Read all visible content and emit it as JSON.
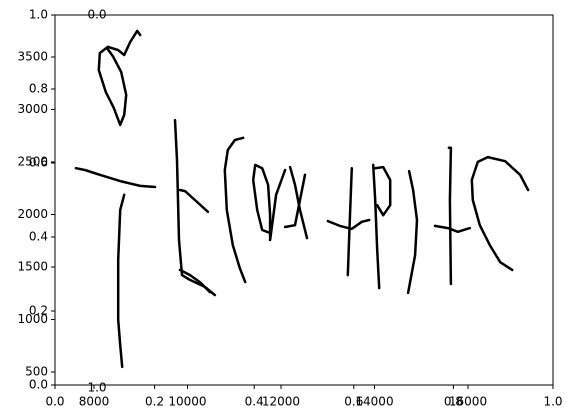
{
  "chart_data": {
    "type": "line",
    "xlim": [
      0,
      1
    ],
    "ylim": [
      0,
      1
    ],
    "xticks": [
      {
        "value": 0,
        "label": "0.0"
      },
      {
        "value": 0.2,
        "label": "0.2"
      },
      {
        "value": 0.4,
        "label": "0.4"
      },
      {
        "value": 0.6,
        "label": "0.6"
      },
      {
        "value": 0.8,
        "label": "0.8"
      },
      {
        "value": 1,
        "label": "1.0"
      }
    ],
    "yticks": [
      {
        "value": 0,
        "label": "0.0"
      },
      {
        "value": 0.2,
        "label": "0.2"
      },
      {
        "value": 0.4,
        "label": "0.4"
      },
      {
        "value": 0.6,
        "label": "0.6"
      },
      {
        "value": 0.8,
        "label": "0.8"
      },
      {
        "value": 1,
        "label": "1.0"
      }
    ],
    "x2lim": [
      7166,
      17818
    ],
    "x2ticks": [
      8000,
      10000,
      12000,
      14000,
      16000
    ],
    "y2lim": [
      376,
      3900
    ],
    "y2ticks": [
      500,
      1000,
      1500,
      2000,
      2500,
      3000,
      3500
    ],
    "y3lim": [
      0,
      1
    ],
    "y3ticks": [
      {
        "value": 0,
        "label": "0.0"
      },
      {
        "value": 1,
        "label": "1.0"
      }
    ],
    "series": [
      {
        "color": "#000000",
        "x": [
          0.171,
          0.165,
          0.151,
          0.139,
          0.127,
          0.106,
          0.09,
          0.088,
          0.102,
          0.118,
          0.131,
          0.139,
          0.143,
          0.133,
          0.116,
          0.104
        ],
        "values": [
          0.946,
          0.957,
          0.927,
          0.892,
          0.905,
          0.914,
          0.897,
          0.851,
          0.792,
          0.749,
          0.703,
          0.73,
          0.784,
          0.846,
          0.889,
          0.911
        ]
      },
      {
        "color": "#000000",
        "x": [
          0.042,
          0.06,
          0.09,
          0.131,
          0.171,
          0.201
        ],
        "values": [
          0.586,
          0.581,
          0.568,
          0.551,
          0.538,
          0.535
        ]
      },
      {
        "color": "#000000",
        "x": [
          0.139,
          0.131,
          0.127,
          0.127,
          0.131,
          0.135
        ],
        "values": [
          0.514,
          0.473,
          0.338,
          0.176,
          0.108,
          0.049
        ]
      },
      {
        "color": "#000000",
        "x": [
          0.241,
          0.245,
          0.249,
          0.255,
          0.271,
          0.301,
          0.321
        ],
        "values": [
          0.716,
          0.608,
          0.392,
          0.297,
          0.284,
          0.265,
          0.243
        ]
      },
      {
        "color": "#000000",
        "x": [
          0.251,
          0.261,
          0.281,
          0.307
        ],
        "values": [
          0.527,
          0.524,
          0.5,
          0.468
        ]
      },
      {
        "color": "#000000",
        "x": [
          0.251,
          0.271,
          0.291,
          0.311
        ],
        "values": [
          0.311,
          0.297,
          0.278,
          0.251
        ]
      },
      {
        "color": "#000000",
        "x": [
          0.378,
          0.361,
          0.347,
          0.341,
          0.345,
          0.357,
          0.371,
          0.382
        ],
        "values": [
          0.668,
          0.662,
          0.635,
          0.581,
          0.473,
          0.378,
          0.316,
          0.278
        ]
      },
      {
        "color": "#000000",
        "x": [
          0.432,
          0.416,
          0.406,
          0.398,
          0.402,
          0.416,
          0.428,
          0.432,
          0.432,
          0.436,
          0.444,
          0.462
        ],
        "values": [
          0.411,
          0.419,
          0.473,
          0.554,
          0.595,
          0.586,
          0.541,
          0.459,
          0.392,
          0.432,
          0.514,
          0.581
        ]
      },
      {
        "color": "#000000",
        "x": [
          0.472,
          0.482,
          0.492,
          0.506
        ],
        "values": [
          0.589,
          0.541,
          0.473,
          0.397
        ]
      },
      {
        "color": "#000000",
        "x": [
          0.462,
          0.482,
          0.502
        ],
        "values": [
          0.427,
          0.432,
          0.568
        ]
      },
      {
        "color": "#000000",
        "x": [
          0.548,
          0.572,
          0.596,
          0.616,
          0.631
        ],
        "values": [
          0.443,
          0.43,
          0.422,
          0.441,
          0.446
        ]
      },
      {
        "color": "#000000",
        "x": [
          0.596,
          0.592,
          0.588
        ],
        "values": [
          0.586,
          0.446,
          0.297
        ]
      },
      {
        "color": "#000000",
        "x": [
          0.639,
          0.643,
          0.647,
          0.651
        ],
        "values": [
          0.595,
          0.5,
          0.365,
          0.262
        ]
      },
      {
        "color": "#000000",
        "x": [
          0.643,
          0.659,
          0.673,
          0.673,
          0.659,
          0.647
        ],
        "values": [
          0.586,
          0.589,
          0.554,
          0.486,
          0.459,
          0.486
        ]
      },
      {
        "color": "#000000",
        "x": [
          0.711,
          0.719,
          0.727,
          0.723,
          0.709
        ],
        "values": [
          0.578,
          0.527,
          0.446,
          0.351,
          0.249
        ]
      },
      {
        "color": "#000000",
        "x": [
          0.763,
          0.789,
          0.809,
          0.833
        ],
        "values": [
          0.43,
          0.424,
          0.414,
          0.424
        ]
      },
      {
        "color": "#000000",
        "x": [
          0.791,
          0.795,
          0.793,
          0.795
        ],
        "values": [
          0.641,
          0.641,
          0.5,
          0.273
        ]
      },
      {
        "color": "#000000",
        "x": [
          0.95,
          0.934,
          0.904,
          0.869,
          0.849,
          0.837,
          0.839,
          0.853,
          0.873,
          0.894,
          0.918
        ],
        "values": [
          0.527,
          0.568,
          0.605,
          0.616,
          0.603,
          0.554,
          0.5,
          0.432,
          0.378,
          0.332,
          0.311
        ]
      }
    ]
  }
}
